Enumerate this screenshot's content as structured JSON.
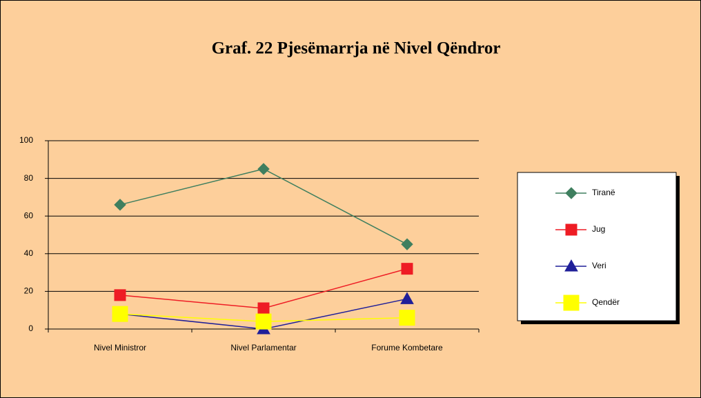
{
  "chart_data": {
    "type": "line",
    "title": "Graf. 22  Pjesëmarrja në Nivel Qëndror",
    "categories": [
      "Nivel Ministror",
      "Nivel Parlamentar",
      "Forume Kombetare"
    ],
    "series": [
      {
        "name": "Tiranë",
        "color": "#3f7f5f",
        "marker": "diamond",
        "values": [
          66,
          85,
          45
        ]
      },
      {
        "name": "Jug",
        "color": "#ee1c24",
        "marker": "square",
        "values": [
          18,
          11,
          32
        ]
      },
      {
        "name": "Veri",
        "color": "#1f1f99",
        "marker": "triangle",
        "values": [
          8,
          0,
          16
        ]
      },
      {
        "name": "Qendër",
        "color": "#ffff00",
        "marker": "square",
        "values": [
          8,
          4,
          6
        ]
      }
    ],
    "ylim": [
      0,
      100
    ],
    "yticks": [
      0,
      20,
      40,
      60,
      80,
      100
    ],
    "grid": true,
    "legend": "right"
  }
}
